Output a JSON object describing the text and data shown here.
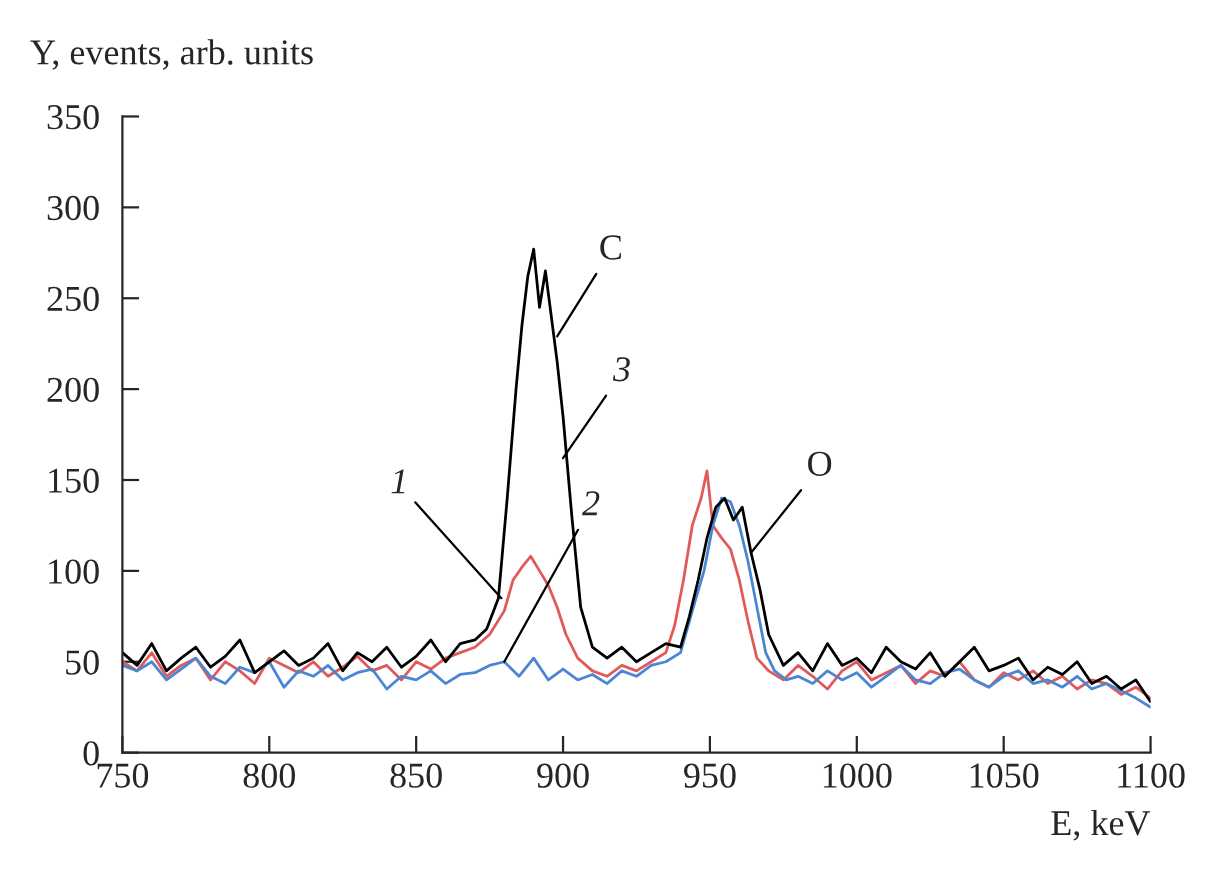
{
  "chart_data": {
    "type": "line",
    "xlabel": "E, keV",
    "ylabel": "Y, events, arb. units",
    "xlim": [
      750,
      1100
    ],
    "xticks": [
      750,
      800,
      850,
      900,
      950,
      1000,
      1050,
      1100
    ],
    "ylim": [
      0,
      350
    ],
    "yticks": [
      0,
      50,
      100,
      150,
      200,
      250,
      300,
      350
    ],
    "grid": false,
    "legend": false,
    "marker": "none",
    "line_style": "solid",
    "series": [
      {
        "color": "#e05a5a",
        "x": [
          750,
          755,
          760,
          765,
          770,
          775,
          780,
          785,
          790,
          795,
          800,
          805,
          810,
          815,
          820,
          825,
          830,
          835,
          840,
          845,
          850,
          855,
          860,
          865,
          870,
          875,
          880,
          883,
          886,
          889,
          892,
          895,
          898,
          901,
          905,
          910,
          915,
          920,
          925,
          930,
          935,
          938,
          941,
          944,
          947,
          949,
          951,
          954,
          957,
          960,
          963,
          966,
          970,
          975,
          980,
          985,
          990,
          995,
          1000,
          1005,
          1010,
          1015,
          1020,
          1025,
          1030,
          1035,
          1040,
          1045,
          1050,
          1055,
          1060,
          1065,
          1070,
          1075,
          1080,
          1085,
          1090,
          1095,
          1100
        ],
        "values": [
          50,
          45,
          55,
          42,
          48,
          52,
          40,
          50,
          45,
          38,
          52,
          48,
          44,
          50,
          42,
          47,
          53,
          45,
          48,
          40,
          50,
          46,
          52,
          55,
          58,
          65,
          78,
          95,
          102,
          108,
          100,
          92,
          80,
          65,
          52,
          45,
          42,
          48,
          45,
          50,
          55,
          70,
          95,
          125,
          140,
          155,
          125,
          118,
          112,
          95,
          72,
          52,
          45,
          40,
          48,
          42,
          35,
          45,
          50,
          40,
          44,
          48,
          38,
          45,
          42,
          50,
          40,
          36,
          44,
          40,
          45,
          38,
          42,
          35,
          40,
          38,
          32,
          36,
          30
        ]
      },
      {
        "color": "#4a86d4",
        "x": [
          750,
          755,
          760,
          765,
          770,
          775,
          780,
          785,
          790,
          795,
          800,
          805,
          810,
          815,
          820,
          825,
          830,
          835,
          840,
          845,
          850,
          855,
          860,
          865,
          870,
          875,
          880,
          885,
          890,
          895,
          900,
          905,
          910,
          915,
          920,
          925,
          930,
          935,
          940,
          944,
          948,
          951,
          954,
          957,
          960,
          963,
          966,
          969,
          972,
          976,
          980,
          985,
          990,
          995,
          1000,
          1005,
          1010,
          1015,
          1020,
          1025,
          1030,
          1035,
          1040,
          1045,
          1050,
          1055,
          1060,
          1065,
          1070,
          1075,
          1080,
          1085,
          1090,
          1095,
          1100
        ],
        "values": [
          48,
          45,
          50,
          40,
          46,
          52,
          42,
          38,
          47,
          44,
          50,
          36,
          45,
          42,
          48,
          40,
          44,
          46,
          35,
          42,
          40,
          45,
          38,
          43,
          44,
          48,
          50,
          42,
          52,
          40,
          46,
          40,
          43,
          38,
          45,
          42,
          48,
          50,
          55,
          78,
          100,
          125,
          140,
          138,
          125,
          105,
          80,
          55,
          45,
          40,
          42,
          38,
          45,
          40,
          44,
          36,
          42,
          48,
          40,
          38,
          44,
          46,
          40,
          36,
          42,
          45,
          38,
          40,
          36,
          42,
          35,
          38,
          34,
          30,
          25
        ]
      },
      {
        "color": "#000000",
        "x": [
          750,
          755,
          760,
          765,
          770,
          775,
          780,
          785,
          790,
          795,
          800,
          805,
          810,
          815,
          820,
          825,
          830,
          835,
          840,
          845,
          850,
          855,
          860,
          865,
          870,
          874,
          878,
          881,
          884,
          886,
          888,
          890,
          892,
          894,
          896,
          898,
          900,
          903,
          906,
          910,
          915,
          920,
          925,
          930,
          935,
          940,
          943,
          946,
          949,
          952,
          955,
          958,
          961,
          964,
          967,
          970,
          975,
          980,
          985,
          990,
          995,
          1000,
          1005,
          1010,
          1015,
          1020,
          1025,
          1030,
          1035,
          1040,
          1045,
          1050,
          1055,
          1060,
          1065,
          1070,
          1075,
          1080,
          1085,
          1090,
          1095,
          1100
        ],
        "values": [
          55,
          48,
          60,
          45,
          52,
          58,
          47,
          53,
          62,
          44,
          50,
          56,
          48,
          52,
          60,
          45,
          55,
          50,
          58,
          47,
          53,
          62,
          50,
          60,
          62,
          68,
          85,
          140,
          200,
          235,
          262,
          277,
          245,
          265,
          240,
          215,
          185,
          130,
          80,
          58,
          52,
          58,
          50,
          55,
          60,
          58,
          75,
          95,
          118,
          135,
          140,
          128,
          135,
          110,
          90,
          65,
          48,
          55,
          45,
          60,
          48,
          52,
          44,
          58,
          50,
          46,
          55,
          42,
          50,
          58,
          45,
          48,
          52,
          40,
          47,
          43,
          50,
          38,
          42,
          35,
          40,
          28
        ]
      }
    ],
    "annotations": [
      {
        "text": "C",
        "x": 898,
        "y": 229
      },
      {
        "text": "3",
        "x": 900,
        "y": 162
      },
      {
        "text": "1",
        "x": 879,
        "y": 85
      },
      {
        "text": "2",
        "x": 880,
        "y": 50
      },
      {
        "text": "O",
        "x": 964,
        "y": 110
      }
    ]
  }
}
